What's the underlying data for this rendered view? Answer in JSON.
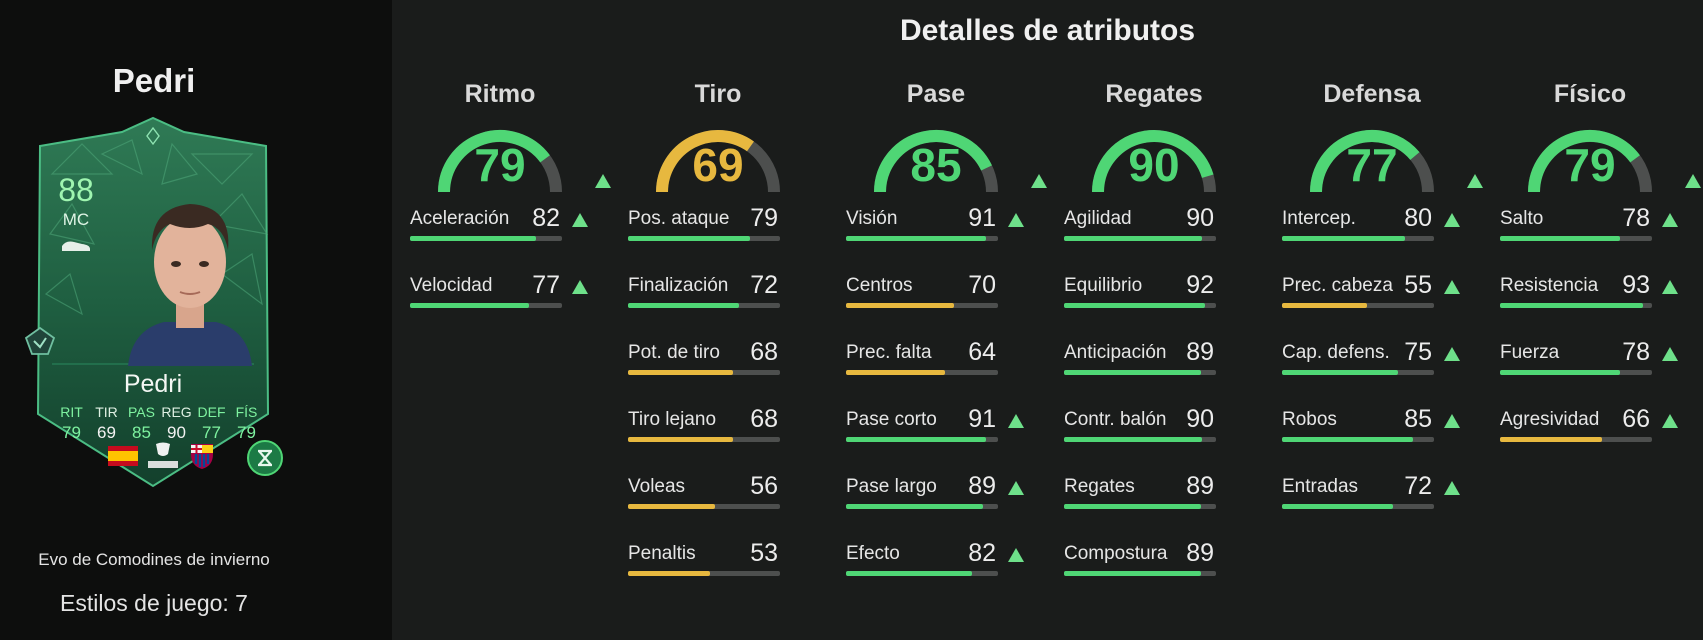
{
  "player": {
    "name": "Pedri",
    "card_name": "Pedri",
    "rating": "88",
    "position": "MC",
    "card_stats": [
      {
        "label": "RIT",
        "value": "79",
        "highlight": true
      },
      {
        "label": "TIR",
        "value": "69",
        "highlight": false
      },
      {
        "label": "PAS",
        "value": "85",
        "highlight": true
      },
      {
        "label": "REG",
        "value": "90",
        "highlight": false
      },
      {
        "label": "DEF",
        "value": "77",
        "highlight": true
      },
      {
        "label": "FÍS",
        "value": "79",
        "highlight": true
      }
    ],
    "league_text": "LALIGA",
    "evo_name": "Evo de Comodines de invierno",
    "playstyles_label": "Estilos de juego: 7"
  },
  "colors": {
    "green": "#4fd675",
    "yellow": "#e7b83f",
    "track": "#4d4f4e",
    "arrow": "#6ee08a"
  },
  "attributes": {
    "title": "Detalles de atributos",
    "categories": [
      {
        "name": "Ritmo",
        "value": 79,
        "color": "green",
        "upgraded": true,
        "stats": [
          {
            "label": "Aceleración",
            "value": 82,
            "color": "green",
            "upgraded": true
          },
          {
            "label": "Velocidad",
            "value": 77,
            "color": "green",
            "upgraded": true
          }
        ]
      },
      {
        "name": "Tiro",
        "value": 69,
        "color": "yellow",
        "upgraded": false,
        "stats": [
          {
            "label": "Pos. ataque",
            "value": 79,
            "color": "green",
            "upgraded": false
          },
          {
            "label": "Finalización",
            "value": 72,
            "color": "green",
            "upgraded": false
          },
          {
            "label": "Pot. de tiro",
            "value": 68,
            "color": "yellow",
            "upgraded": false
          },
          {
            "label": "Tiro lejano",
            "value": 68,
            "color": "yellow",
            "upgraded": false
          },
          {
            "label": "Voleas",
            "value": 56,
            "color": "yellow",
            "upgraded": false
          },
          {
            "label": "Penaltis",
            "value": 53,
            "color": "yellow",
            "upgraded": false
          }
        ]
      },
      {
        "name": "Pase",
        "value": 85,
        "color": "green",
        "upgraded": true,
        "stats": [
          {
            "label": "Visión",
            "value": 91,
            "color": "green",
            "upgraded": true
          },
          {
            "label": "Centros",
            "value": 70,
            "color": "yellow",
            "upgraded": false
          },
          {
            "label": "Prec. falta",
            "value": 64,
            "color": "yellow",
            "upgraded": false
          },
          {
            "label": "Pase corto",
            "value": 91,
            "color": "green",
            "upgraded": true
          },
          {
            "label": "Pase largo",
            "value": 89,
            "color": "green",
            "upgraded": true
          },
          {
            "label": "Efecto",
            "value": 82,
            "color": "green",
            "upgraded": true
          }
        ]
      },
      {
        "name": "Regates",
        "value": 90,
        "color": "green",
        "upgraded": false,
        "stats": [
          {
            "label": "Agilidad",
            "value": 90,
            "color": "green",
            "upgraded": false
          },
          {
            "label": "Equilibrio",
            "value": 92,
            "color": "green",
            "upgraded": false
          },
          {
            "label": "Anticipación",
            "value": 89,
            "color": "green",
            "upgraded": false
          },
          {
            "label": "Contr. balón",
            "value": 90,
            "color": "green",
            "upgraded": false
          },
          {
            "label": "Regates",
            "value": 89,
            "color": "green",
            "upgraded": false
          },
          {
            "label": "Compostura",
            "value": 89,
            "color": "green",
            "upgraded": false
          }
        ]
      },
      {
        "name": "Defensa",
        "value": 77,
        "color": "green",
        "upgraded": true,
        "stats": [
          {
            "label": "Intercep.",
            "value": 80,
            "color": "green",
            "upgraded": true
          },
          {
            "label": "Prec. cabeza",
            "value": 55,
            "color": "yellow",
            "upgraded": true
          },
          {
            "label": "Cap. defens.",
            "value": 75,
            "color": "green",
            "upgraded": true
          },
          {
            "label": "Robos",
            "value": 85,
            "color": "green",
            "upgraded": true
          },
          {
            "label": "Entradas",
            "value": 72,
            "color": "green",
            "upgraded": true
          }
        ]
      },
      {
        "name": "Físico",
        "value": 79,
        "color": "green",
        "upgraded": true,
        "stats": [
          {
            "label": "Salto",
            "value": 78,
            "color": "green",
            "upgraded": true
          },
          {
            "label": "Resistencia",
            "value": 93,
            "color": "green",
            "upgraded": true
          },
          {
            "label": "Fuerza",
            "value": 78,
            "color": "green",
            "upgraded": true
          },
          {
            "label": "Agresividad",
            "value": 66,
            "color": "yellow",
            "upgraded": true
          }
        ]
      }
    ]
  }
}
